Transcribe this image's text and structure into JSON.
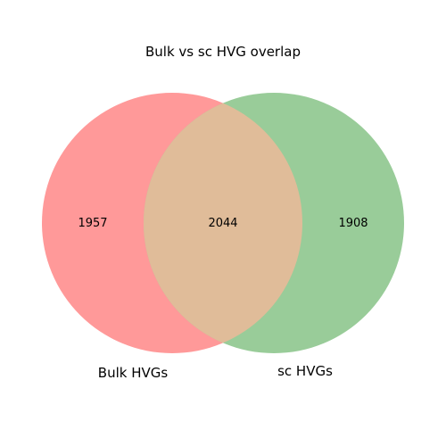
{
  "chart_data": {
    "type": "venn",
    "title": "Bulk vs sc HVG overlap",
    "sets": [
      {
        "name": "Bulk HVGs",
        "only_count": "1957",
        "color": "#ff9999"
      },
      {
        "name": "sc HVGs",
        "only_count": "1908",
        "color": "#99cc99"
      }
    ],
    "intersection": {
      "count": "2044",
      "color": "#e0bc99"
    }
  }
}
